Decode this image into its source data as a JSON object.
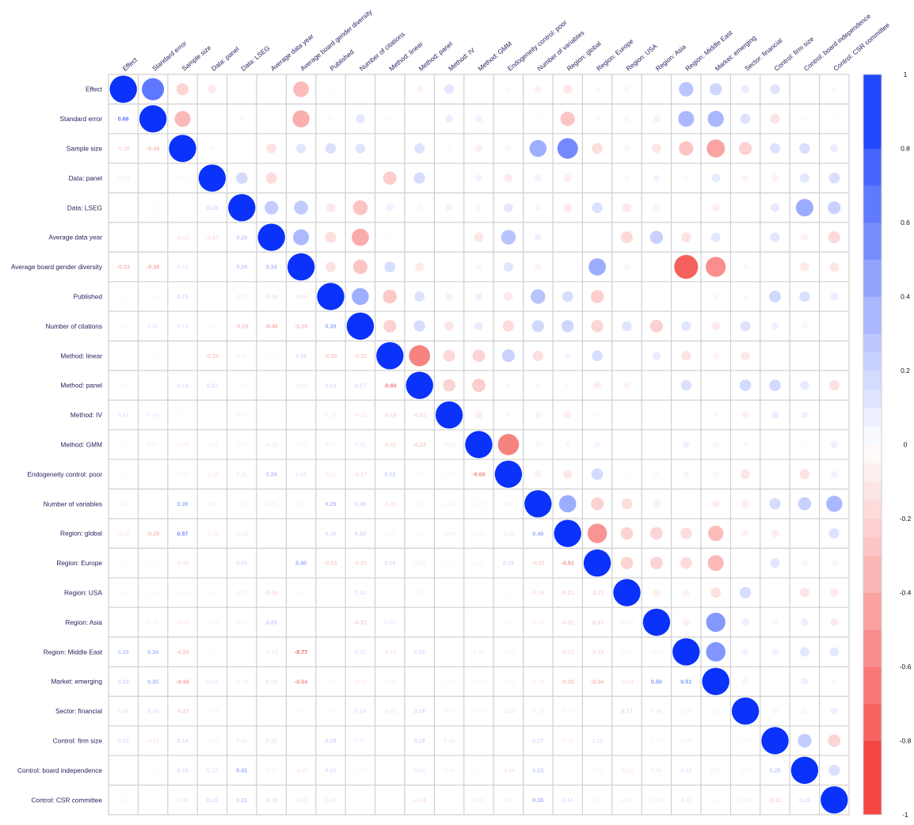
{
  "chart_data": {
    "type": "heatmap",
    "title": "",
    "variables": [
      "Effect",
      "Standard error",
      "Sample size",
      "Data: panel",
      "Data: LSEG",
      "Average data year",
      "Average board gender diversity",
      "Published",
      "Number of citations",
      "Method: linear",
      "Method: panel",
      "Method: IV",
      "Method: GMM",
      "Endogeneity control: poor",
      "Number of variables",
      "Region: global",
      "Region: Europe",
      "Region: USA",
      "Region: Asia",
      "Region: Middle East",
      "Market: emerging",
      "Sector: financial",
      "Control: firm size",
      "Control: board independence",
      "Control: CSR committee"
    ],
    "lower_triangle_values": [
      [],
      [
        0.66
      ],
      [
        -0.2,
        -0.34
      ],
      [
        -0.1,
        0.0,
        0.03
      ],
      [
        0.02,
        0.03,
        0.0,
        0.18
      ],
      [
        0.0,
        0.01,
        -0.13,
        -0.17,
        0.25
      ],
      [
        -0.33,
        -0.39,
        0.12,
        0.0,
        0.26,
        0.34
      ],
      [
        0.02,
        0.03,
        0.15,
        0.0,
        -0.11,
        -0.16,
        -0.14
      ],
      [
        0.02,
        0.11,
        0.13,
        0.02,
        -0.29,
        -0.4,
        -0.28,
        0.39
      ],
      [
        0.0,
        -0.03,
        0.0,
        -0.24,
        0.07,
        0.02,
        0.16,
        -0.26,
        -0.22
      ],
      [
        -0.06,
        -0.02,
        0.14,
        0.17,
        0.03,
        0.01,
        -0.1,
        0.14,
        0.17,
        -0.6
      ],
      [
        0.12,
        0.08,
        -0.03,
        -0.01,
        0.06,
        -0.01,
        -0.02,
        0.06,
        -0.12,
        -0.19,
        -0.21
      ],
      [
        0.02,
        0.07,
        -0.08,
        0.06,
        0.04,
        -0.12,
        0.04,
        0.07,
        0.09,
        -0.21,
        -0.24,
        -0.08
      ],
      [
        -0.03,
        0.0,
        -0.05,
        -0.1,
        0.11,
        0.29,
        0.12,
        -0.11,
        -0.17,
        0.22,
        0.04,
        0.03,
        -0.6
      ],
      [
        -0.07,
        0.02,
        0.39,
        0.06,
        0.05,
        0.07,
        -0.06,
        0.29,
        0.19,
        -0.15,
        0.04,
        -0.06,
        -0.05,
        -0.07
      ],
      [
        -0.11,
        -0.28,
        0.57,
        -0.08,
        -0.1,
        -0.01,
        -0.01,
        0.16,
        0.2,
        0.05,
        0.03,
        -0.08,
        -0.05,
        -0.11,
        0.4
      ],
      [
        -0.04,
        -0.04,
        -0.16,
        -0.01,
        0.15,
        0.0,
        0.4,
        -0.23,
        -0.2,
        0.16,
        -0.08,
        0.03,
        0.05,
        0.18,
        -0.22,
        -0.51
      ],
      [
        0.04,
        0.04,
        -0.05,
        -0.04,
        -0.11,
        -0.19,
        0.04,
        0.01,
        0.13,
        -0.02,
        -0.06,
        0.0,
        0.01,
        0.02,
        -0.16,
        -0.21,
        -0.21
      ],
      [
        -0.02,
        0.06,
        -0.12,
        0.06,
        0.05,
        0.23,
        0.0,
        -0.01,
        -0.22,
        0.09,
        0.01,
        0.0,
        0.01,
        0.03,
        -0.08,
        -0.21,
        -0.21,
        -0.08
      ],
      [
        0.28,
        0.34,
        -0.28,
        -0.03,
        0.0,
        -0.13,
        -0.77,
        0.01,
        0.12,
        -0.13,
        0.15,
        0.0,
        0.06,
        0.05,
        0.0,
        -0.17,
        -0.18,
        -0.07,
        -0.07
      ],
      [
        0.2,
        0.35,
        -0.44,
        0.1,
        -0.08,
        0.12,
        -0.54,
        -0.04,
        -0.1,
        -0.06,
        0.01,
        -0.04,
        -0.05,
        -0.05,
        -0.08,
        -0.32,
        -0.34,
        -0.14,
        0.5,
        0.51
      ],
      [
        0.09,
        0.14,
        -0.22,
        -0.06,
        0.0,
        0.01,
        0.04,
        0.03,
        0.14,
        -0.11,
        0.18,
        -0.07,
        -0.04,
        -0.12,
        -0.08,
        -0.07,
        -0.01,
        0.17,
        0.08,
        0.06,
        0.05
      ],
      [
        0.13,
        -0.13,
        0.14,
        -0.07,
        0.1,
        0.12,
        0.01,
        0.19,
        0.07,
        -0.02,
        0.18,
        0.08,
        0.0,
        0.0,
        0.17,
        -0.08,
        0.12,
        0.01,
        0.04,
        0.06,
        0.0,
        0.04
      ],
      [
        0.0,
        -0.03,
        0.15,
        0.12,
        0.41,
        -0.07,
        -0.11,
        0.15,
        -0.05,
        -0.02,
        0.1,
        0.06,
        0.02,
        -0.14,
        0.23,
        -0.01,
        0.04,
        -0.12,
        0.08,
        0.12,
        0.07,
        -0.05,
        0.25
      ],
      [
        0.03,
        0.02,
        0.09,
        0.16,
        0.22,
        -0.19,
        -0.12,
        0.08,
        0.0,
        -0.02,
        -0.14,
        0.01,
        0.07,
        0.06,
        0.35,
        0.14,
        -0.05,
        -0.1,
        -0.09,
        0.11,
        -0.04,
        0.07,
        -0.21,
        0.16
      ]
    ],
    "upper_triangle": "circles (same correlation matrix, area proportional to |r|)",
    "diagonal": 1,
    "color_scale": {
      "min": -1,
      "max": 1,
      "ticks": [
        "1",
        "0.8",
        "0.6",
        "0.4",
        "0.2",
        "0",
        "-0.2",
        "-0.4",
        "-0.6",
        "-0.8",
        "-1"
      ],
      "negative_color": "#F2302C",
      "neutral_color": "#FFFFFF",
      "positive_color": "#0A32FB"
    },
    "legend_placement": "right",
    "grid": true
  }
}
